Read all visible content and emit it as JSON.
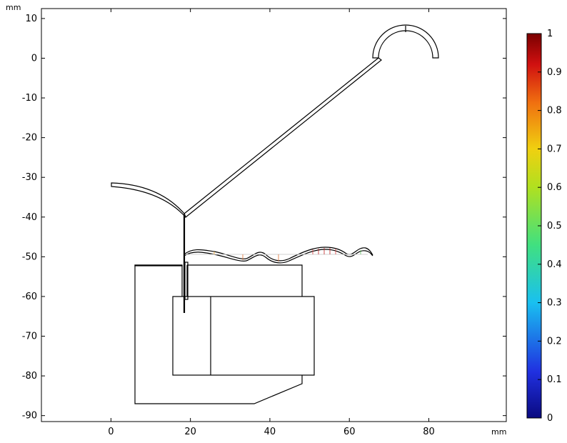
{
  "plot": {
    "unit_y": "mm",
    "unit_x": "mm",
    "x_range_mm": [
      -17.5,
      99.5
    ],
    "y_range_mm": [
      -91.5,
      12.5
    ],
    "x_ticks": [
      0,
      20,
      40,
      60,
      80
    ],
    "y_ticks": [
      10,
      0,
      -10,
      -20,
      -30,
      -40,
      -50,
      -60,
      -70,
      -80,
      -90
    ]
  },
  "colorbar": {
    "ticks": [
      "1",
      "0.9",
      "0.8",
      "0.7",
      "0.6",
      "0.5",
      "0.4",
      "0.3",
      "0.2",
      "0.1",
      "0"
    ],
    "colormap": [
      "#00008b",
      "#0000ff",
      "#00ffff",
      "#7fff00",
      "#ffff00",
      "#ff7f00",
      "#ff0000",
      "#800000"
    ]
  }
}
